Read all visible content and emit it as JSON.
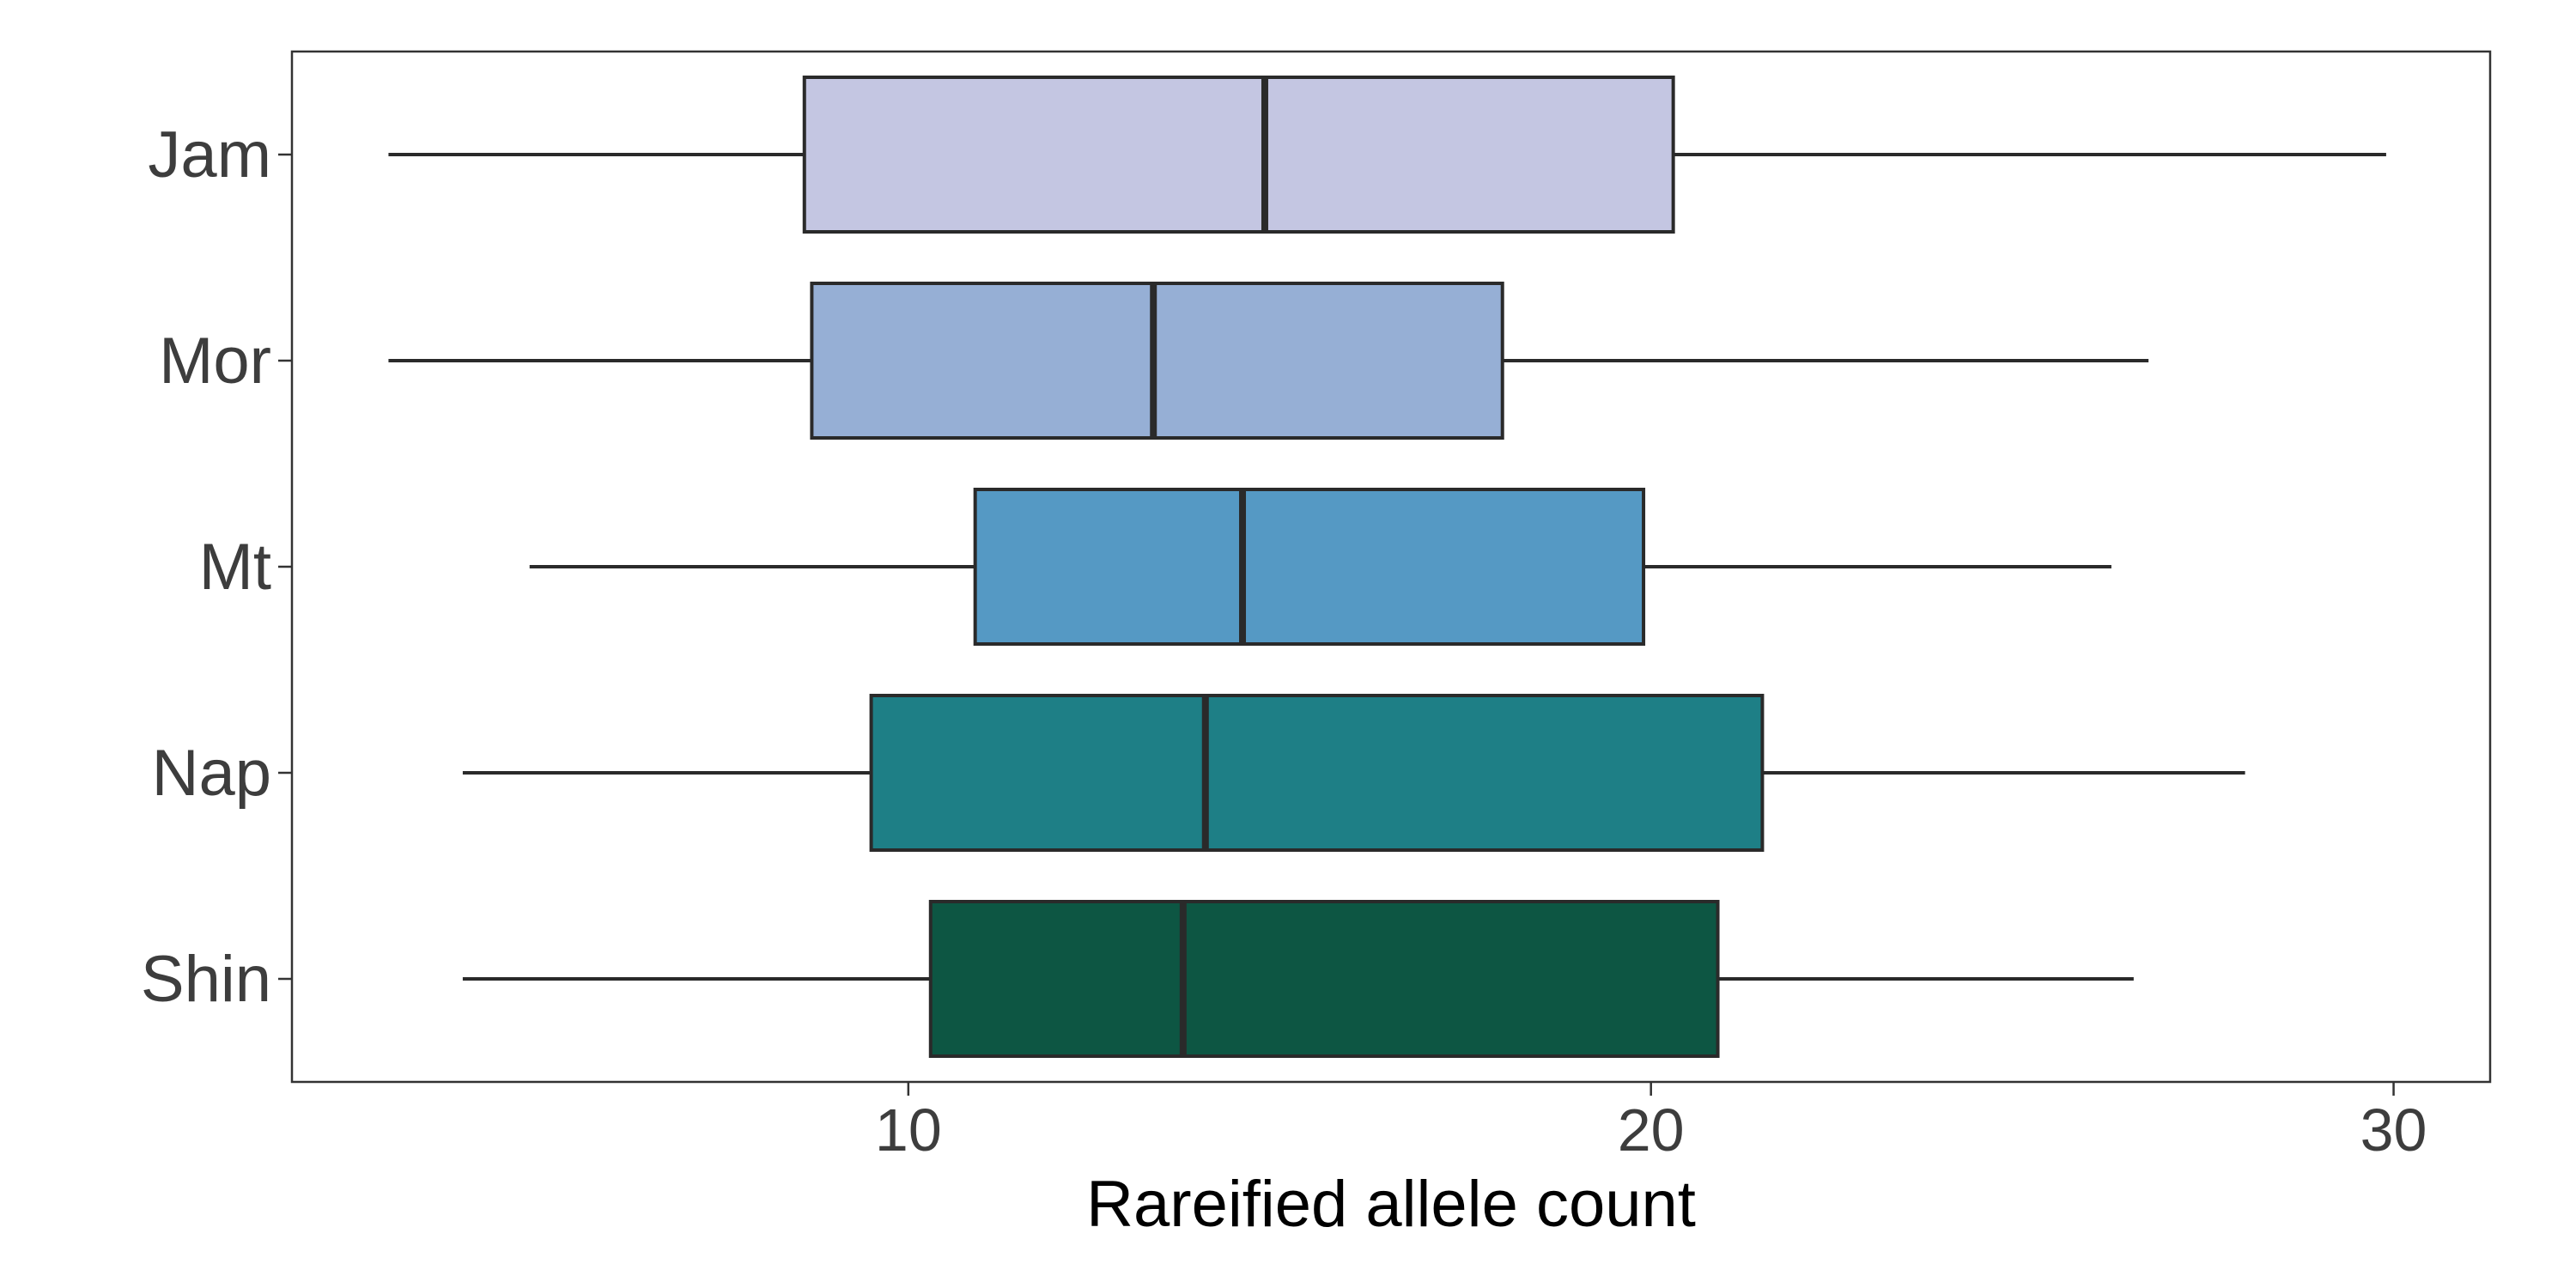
{
  "chart_data": {
    "type": "boxplot",
    "orientation": "horizontal",
    "title": "",
    "xlabel": "Rareified allele count",
    "ylabel": "",
    "xlim": [
      1.7,
      31.3
    ],
    "xticks": [
      10,
      20,
      30
    ],
    "xtick_labels": [
      "10",
      "20",
      "30"
    ],
    "grid": true,
    "legend": "none",
    "categories": [
      "Jam",
      "Mor",
      "Mt",
      "Nap",
      "Shin"
    ],
    "series": [
      {
        "category": "Jam",
        "color": "#c4c6e2",
        "min": 3.0,
        "q1": 8.6,
        "median": 14.8,
        "q3": 20.3,
        "max": 29.9
      },
      {
        "category": "Mor",
        "color": "#96afd5",
        "min": 3.0,
        "q1": 8.7,
        "median": 13.3,
        "q3": 18.0,
        "max": 26.7
      },
      {
        "category": "Mt",
        "color": "#5599c4",
        "min": 4.9,
        "q1": 10.9,
        "median": 14.5,
        "q3": 19.9,
        "max": 26.2
      },
      {
        "category": "Nap",
        "color": "#1e7f86",
        "min": 4.0,
        "q1": 9.5,
        "median": 14.0,
        "q3": 21.5,
        "max": 28.0
      },
      {
        "category": "Shin",
        "color": "#0d5643",
        "min": 4.0,
        "q1": 10.3,
        "median": 13.7,
        "q3": 20.9,
        "max": 26.5
      }
    ]
  }
}
